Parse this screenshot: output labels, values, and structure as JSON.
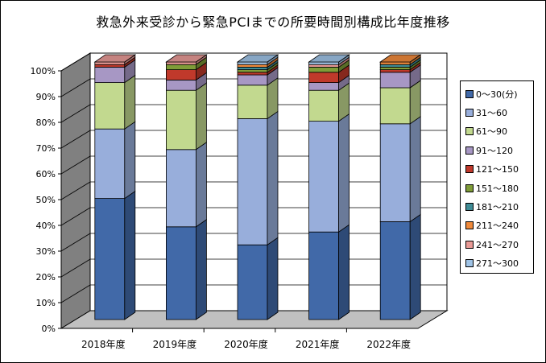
{
  "chart_data": {
    "type": "bar",
    "stacked": true,
    "title": "救急外来受診から緊急PCIまでの所要時間別構成比年度推移",
    "categories": [
      "2018年度",
      "2019年度",
      "2020年度",
      "2021年度",
      "2022年度"
    ],
    "ylim": [
      0,
      100
    ],
    "yticks": [
      "0%",
      "10%",
      "20%",
      "30%",
      "40%",
      "50%",
      "60%",
      "70%",
      "80%",
      "90%",
      "100%"
    ],
    "grid": true,
    "legend": "right",
    "series": [
      {
        "name": "0～30(分)",
        "color": "#4169a8",
        "values": [
          47,
          36,
          29,
          34,
          38
        ]
      },
      {
        "name": "31～60",
        "color": "#98aedb",
        "values": [
          27,
          30,
          49,
          43,
          38
        ]
      },
      {
        "name": "61～90",
        "color": "#c2d98f",
        "values": [
          18,
          23,
          13,
          12,
          14
        ]
      },
      {
        "name": "91～120",
        "color": "#a797c4",
        "values": [
          6,
          4,
          4,
          3,
          6
        ]
      },
      {
        "name": "121～150",
        "color": "#c0392b",
        "values": [
          1,
          4,
          1,
          4,
          1
        ]
      },
      {
        "name": "151～180",
        "color": "#7f9c38",
        "values": [
          0,
          2,
          1,
          2,
          1
        ]
      },
      {
        "name": "181～210",
        "color": "#3f8c95",
        "values": [
          0,
          0,
          1,
          0,
          1
        ]
      },
      {
        "name": "211～240",
        "color": "#f08a3c",
        "values": [
          0,
          0,
          1,
          0,
          1
        ]
      },
      {
        "name": "241～270",
        "color": "#e89a96",
        "values": [
          1,
          1,
          0,
          1,
          0
        ]
      },
      {
        "name": "271～300",
        "color": "#9fc3e6",
        "values": [
          0,
          0,
          1,
          1,
          0
        ]
      }
    ]
  }
}
